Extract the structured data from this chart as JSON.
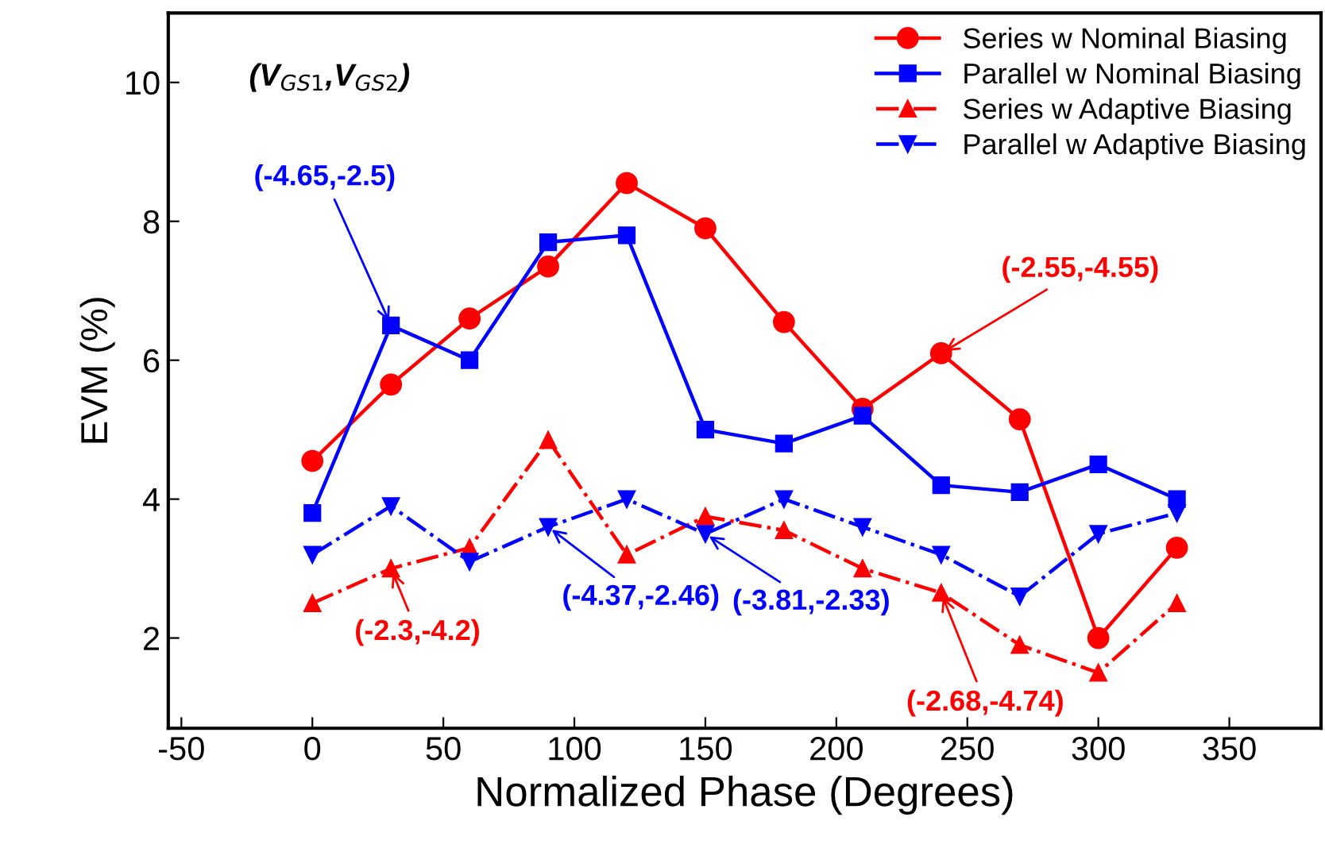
{
  "chart_data": {
    "type": "line",
    "xlabel": "Normalized Phase (Degrees)",
    "ylabel": "EVM (%)",
    "x": [
      0,
      30,
      60,
      90,
      120,
      150,
      180,
      210,
      240,
      270,
      300,
      330
    ],
    "series": [
      {
        "name": "Series w Nominal Biasing",
        "color": "#ff0000",
        "marker": "circle",
        "line_style": "solid",
        "values": [
          4.55,
          5.65,
          6.6,
          7.35,
          8.55,
          7.9,
          6.55,
          5.3,
          6.1,
          5.15,
          2.0,
          3.3
        ]
      },
      {
        "name": "Parallel w Nominal Biasing",
        "color": "#0000ff",
        "marker": "square",
        "line_style": "solid",
        "values": [
          3.8,
          6.5,
          6.0,
          7.7,
          7.8,
          5.0,
          4.8,
          5.2,
          4.2,
          4.1,
          4.5,
          4.0
        ]
      },
      {
        "name": "Series w Adaptive Biasing",
        "color": "#ff0000",
        "marker": "triangle",
        "line_style": "dashdot",
        "values": [
          2.5,
          3.0,
          3.3,
          4.85,
          3.2,
          3.75,
          3.55,
          3.0,
          2.65,
          1.9,
          1.5,
          2.5
        ]
      },
      {
        "name": "Parallel w Adaptive Biasing",
        "color": "#0000ff",
        "marker": "triangle_down",
        "line_style": "dashdot",
        "values": [
          3.2,
          3.9,
          3.1,
          3.6,
          4.0,
          3.5,
          4.0,
          3.6,
          3.2,
          2.6,
          3.5,
          3.8
        ]
      }
    ],
    "xlim": [
      -55,
      385
    ],
    "ylim": [
      0.7,
      11
    ],
    "xticks": [
      -50,
      0,
      50,
      100,
      150,
      200,
      250,
      300,
      350
    ],
    "yticks": [
      2,
      4,
      6,
      8,
      10
    ],
    "legend": "top right",
    "grid": false,
    "annotations": [
      "(V$_{GS1}$,V$_{GS2}$)",
      {
        "text": "(-4.65,-2.5)",
        "x": 30,
        "y": 6.5
      },
      {
        "text": "(-2.55,-4.55)",
        "x": 240,
        "y": 6.1
      },
      {
        "text": "(-2.3,-4.2)",
        "x": 30,
        "y": 3.0
      },
      {
        "text": "(-4.37,-2.46)",
        "x": 90,
        "y": 3.6
      },
      {
        "text": "(-3.81,-2.33)",
        "x": 150,
        "y": 3.5
      },
      {
        "text": "(-2.68,-4.74)",
        "x": 240,
        "y": 2.65
      }
    ]
  }
}
